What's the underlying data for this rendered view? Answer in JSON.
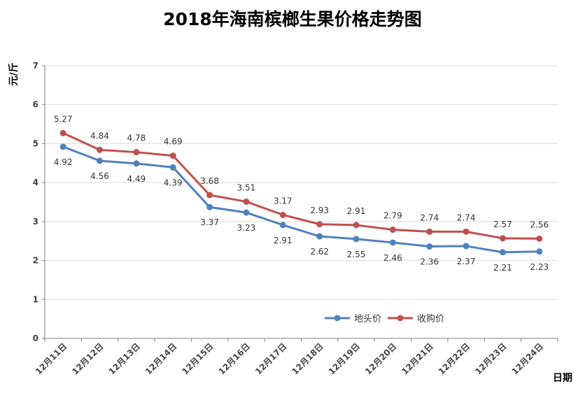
{
  "chart_data": {
    "type": "line",
    "title": "2018年海南槟榔生果价格走势图",
    "xlabel": "日期",
    "ylabel": "元/斤",
    "ylim": [
      0,
      7
    ],
    "yticks": [
      0,
      1,
      2,
      3,
      4,
      5,
      6,
      7
    ],
    "grid": true,
    "legend_position": "bottom-right",
    "categories": [
      "12月11日",
      "12月12日",
      "12月13日",
      "12月14日",
      "12月15日",
      "12月16日",
      "12月17日",
      "12月18日",
      "12月19日",
      "12月20日",
      "12月21日",
      "12月22日",
      "12月23日",
      "12月24日"
    ],
    "series": [
      {
        "name": "地头价",
        "color": "#4f81bd",
        "values": [
          4.92,
          4.56,
          4.49,
          4.39,
          3.37,
          3.23,
          2.91,
          2.62,
          2.55,
          2.46,
          2.36,
          2.37,
          2.21,
          2.23
        ],
        "labels": [
          "4.92",
          "4.56",
          "4.49",
          "4.39",
          "3.37",
          "3.23",
          "2.91",
          "2.62",
          "2.55",
          "2.46",
          "2.36",
          "2.37",
          "2.21",
          "2.23"
        ]
      },
      {
        "name": "收购价",
        "color": "#c0504d",
        "values": [
          5.27,
          4.84,
          4.78,
          4.69,
          3.68,
          3.51,
          3.17,
          2.93,
          2.91,
          2.79,
          2.74,
          2.74,
          2.57,
          2.56
        ],
        "labels": [
          "5.27",
          "4.84",
          "4.78",
          "4.69",
          "3.68",
          "3.51",
          "3.17",
          "2.93",
          "2.91",
          "2.79",
          "2.74",
          "2.74",
          "2.57",
          "2.56"
        ]
      }
    ]
  }
}
